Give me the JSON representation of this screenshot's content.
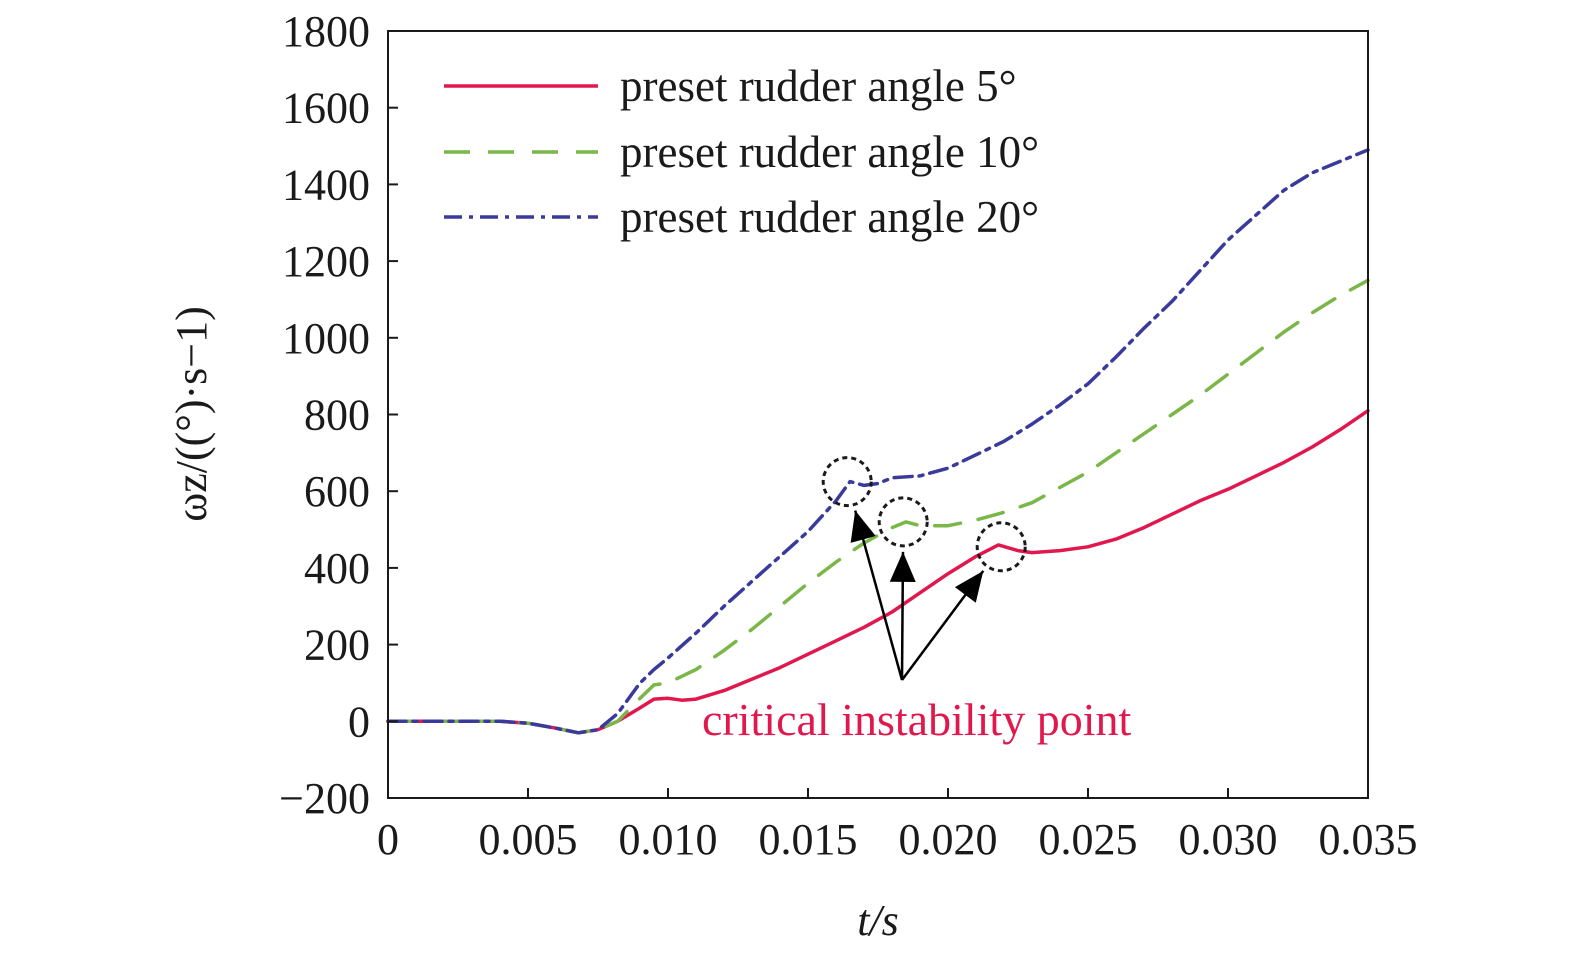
{
  "chart_data": {
    "type": "line",
    "xlabel": "t/s",
    "ylabel": "ωz/((°)·s−1)",
    "xlim": [
      0,
      0.035
    ],
    "ylim": [
      -200,
      1800
    ],
    "xticks": [
      0,
      0.005,
      0.01,
      0.015,
      0.02,
      0.025,
      0.03,
      0.035
    ],
    "xtick_labels": [
      "0",
      "0.005",
      "0.010",
      "0.015",
      "0.020",
      "0.025",
      "0.030",
      "0.035"
    ],
    "yticks": [
      -200,
      0,
      200,
      400,
      600,
      800,
      1000,
      1200,
      1400,
      1600,
      1800
    ],
    "ytick_labels": [
      "−200",
      "0",
      "200",
      "400",
      "600",
      "800",
      "1000",
      "1200",
      "1400",
      "1600",
      "1800"
    ],
    "legend_position": "top-left",
    "grid": false,
    "series": [
      {
        "name": "preset rudder angle 5°",
        "color": "#e0184e",
        "style": "solid",
        "points": [
          [
            0,
            0
          ],
          [
            0.004,
            0
          ],
          [
            0.005,
            -5
          ],
          [
            0.006,
            -18
          ],
          [
            0.0068,
            -30
          ],
          [
            0.0075,
            -22
          ],
          [
            0.0082,
            0
          ],
          [
            0.009,
            35
          ],
          [
            0.0095,
            58
          ],
          [
            0.01,
            60
          ],
          [
            0.0105,
            55
          ],
          [
            0.011,
            58
          ],
          [
            0.012,
            80
          ],
          [
            0.013,
            110
          ],
          [
            0.014,
            140
          ],
          [
            0.015,
            175
          ],
          [
            0.016,
            210
          ],
          [
            0.017,
            245
          ],
          [
            0.018,
            285
          ],
          [
            0.019,
            335
          ],
          [
            0.02,
            385
          ],
          [
            0.021,
            430
          ],
          [
            0.0218,
            460
          ],
          [
            0.0225,
            445
          ],
          [
            0.023,
            440
          ],
          [
            0.024,
            445
          ],
          [
            0.025,
            455
          ],
          [
            0.026,
            475
          ],
          [
            0.027,
            505
          ],
          [
            0.028,
            540
          ],
          [
            0.029,
            575
          ],
          [
            0.03,
            605
          ],
          [
            0.031,
            640
          ],
          [
            0.032,
            675
          ],
          [
            0.033,
            715
          ],
          [
            0.034,
            760
          ],
          [
            0.035,
            810
          ]
        ]
      },
      {
        "name": "preset rudder angle 10°",
        "color": "#7ab648",
        "style": "dashed",
        "points": [
          [
            0,
            0
          ],
          [
            0.004,
            0
          ],
          [
            0.005,
            -5
          ],
          [
            0.006,
            -18
          ],
          [
            0.0068,
            -30
          ],
          [
            0.0075,
            -22
          ],
          [
            0.0082,
            0
          ],
          [
            0.009,
            60
          ],
          [
            0.0095,
            95
          ],
          [
            0.01,
            100
          ],
          [
            0.011,
            135
          ],
          [
            0.012,
            185
          ],
          [
            0.013,
            240
          ],
          [
            0.014,
            300
          ],
          [
            0.015,
            360
          ],
          [
            0.016,
            415
          ],
          [
            0.017,
            465
          ],
          [
            0.018,
            505
          ],
          [
            0.0185,
            520
          ],
          [
            0.019,
            510
          ],
          [
            0.02,
            510
          ],
          [
            0.021,
            525
          ],
          [
            0.022,
            545
          ],
          [
            0.023,
            570
          ],
          [
            0.024,
            610
          ],
          [
            0.025,
            650
          ],
          [
            0.026,
            700
          ],
          [
            0.027,
            750
          ],
          [
            0.028,
            800
          ],
          [
            0.029,
            850
          ],
          [
            0.03,
            905
          ],
          [
            0.031,
            960
          ],
          [
            0.032,
            1015
          ],
          [
            0.033,
            1065
          ],
          [
            0.034,
            1110
          ],
          [
            0.035,
            1150
          ]
        ]
      },
      {
        "name": "preset rudder angle 20°",
        "color": "#3a3a9c",
        "style": "dashdot",
        "points": [
          [
            0,
            0
          ],
          [
            0.004,
            0
          ],
          [
            0.005,
            -5
          ],
          [
            0.006,
            -18
          ],
          [
            0.0068,
            -30
          ],
          [
            0.0075,
            -22
          ],
          [
            0.0082,
            20
          ],
          [
            0.009,
            100
          ],
          [
            0.0095,
            135
          ],
          [
            0.01,
            165
          ],
          [
            0.011,
            230
          ],
          [
            0.012,
            300
          ],
          [
            0.013,
            365
          ],
          [
            0.014,
            430
          ],
          [
            0.015,
            495
          ],
          [
            0.016,
            575
          ],
          [
            0.0165,
            625
          ],
          [
            0.017,
            615
          ],
          [
            0.0175,
            620
          ],
          [
            0.018,
            635
          ],
          [
            0.019,
            640
          ],
          [
            0.02,
            660
          ],
          [
            0.021,
            695
          ],
          [
            0.022,
            730
          ],
          [
            0.023,
            775
          ],
          [
            0.024,
            825
          ],
          [
            0.025,
            880
          ],
          [
            0.026,
            950
          ],
          [
            0.027,
            1025
          ],
          [
            0.028,
            1095
          ],
          [
            0.029,
            1175
          ],
          [
            0.03,
            1255
          ],
          [
            0.031,
            1320
          ],
          [
            0.032,
            1385
          ],
          [
            0.033,
            1430
          ],
          [
            0.034,
            1460
          ],
          [
            0.035,
            1490
          ]
        ]
      }
    ],
    "annotation": {
      "text": "critical instability point",
      "color": "#e0184e",
      "markers": [
        [
          0.0164,
          625
        ],
        [
          0.0184,
          520
        ],
        [
          0.0219,
          455
        ]
      ]
    }
  }
}
